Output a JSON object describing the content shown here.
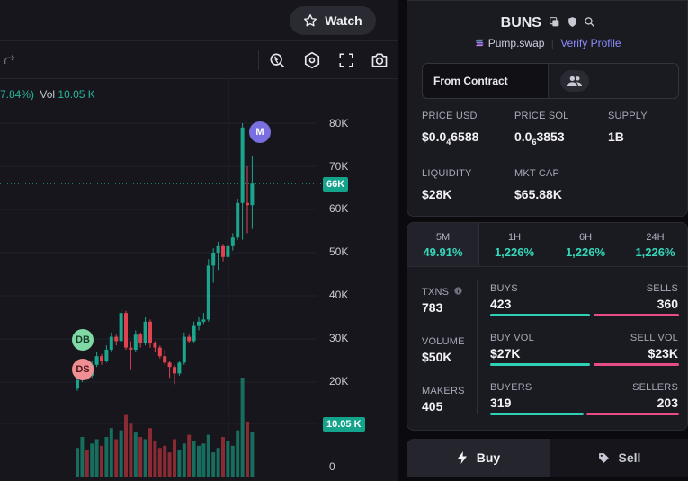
{
  "header": {
    "watch_label": "Watch"
  },
  "chart": {
    "change_text": "7.84%)",
    "vol_label": "Vol",
    "vol_value": "10.05 K",
    "price_tag": "66K",
    "volume_tag": "10.05 K",
    "y_ticks": [
      "80K",
      "70K",
      "60K",
      "50K",
      "40K",
      "30K",
      "20K",
      "0"
    ],
    "markers": {
      "m": "M",
      "db": "DB",
      "ds": "DS"
    },
    "colors": {
      "up": "#1ba58d",
      "down": "#e0434f",
      "m_marker": "#7a6fe0",
      "db_marker": "#7fd9a4",
      "ds_marker": "#f08f93"
    }
  },
  "chart_data": {
    "type": "candlestick",
    "y_axis_ticks": [
      "80K",
      "70K",
      "60K",
      "50K",
      "40K",
      "30K",
      "20K",
      "0"
    ],
    "last_price": "66K",
    "last_volume": "10.05 K",
    "candles": [
      {
        "o": 18500,
        "c": 20500,
        "h": 21500,
        "l": 18000
      },
      {
        "o": 20500,
        "c": 22500,
        "h": 23500,
        "l": 20000
      },
      {
        "o": 22500,
        "c": 21500,
        "h": 23000,
        "l": 20500
      },
      {
        "o": 21500,
        "c": 24000,
        "h": 25000,
        "l": 21000
      },
      {
        "o": 24000,
        "c": 26000,
        "h": 27000,
        "l": 23500
      },
      {
        "o": 26000,
        "c": 25000,
        "h": 26500,
        "l": 24000
      },
      {
        "o": 25000,
        "c": 27500,
        "h": 28500,
        "l": 24500
      },
      {
        "o": 27500,
        "c": 30500,
        "h": 31500,
        "l": 27000
      },
      {
        "o": 30500,
        "c": 29500,
        "h": 31000,
        "l": 28500
      },
      {
        "o": 29500,
        "c": 36000,
        "h": 37000,
        "l": 29000
      },
      {
        "o": 36000,
        "c": 28000,
        "h": 36500,
        "l": 27500
      },
      {
        "o": 28000,
        "c": 27500,
        "h": 29500,
        "l": 23000
      },
      {
        "o": 27500,
        "c": 31000,
        "h": 32000,
        "l": 27000
      },
      {
        "o": 31000,
        "c": 29000,
        "h": 31500,
        "l": 28000
      },
      {
        "o": 29000,
        "c": 34000,
        "h": 35000,
        "l": 28500
      },
      {
        "o": 34000,
        "c": 29000,
        "h": 34500,
        "l": 28000
      },
      {
        "o": 29000,
        "c": 28000,
        "h": 29500,
        "l": 27000
      },
      {
        "o": 28000,
        "c": 26000,
        "h": 28500,
        "l": 25500
      },
      {
        "o": 26000,
        "c": 24500,
        "h": 27500,
        "l": 24000
      },
      {
        "o": 24500,
        "c": 23500,
        "h": 25000,
        "l": 21000
      },
      {
        "o": 23500,
        "c": 22000,
        "h": 24000,
        "l": 19500
      },
      {
        "o": 22000,
        "c": 24500,
        "h": 25000,
        "l": 21500
      },
      {
        "o": 24500,
        "c": 30500,
        "h": 31500,
        "l": 24000
      },
      {
        "o": 30500,
        "c": 29500,
        "h": 31000,
        "l": 29000
      },
      {
        "o": 29500,
        "c": 33000,
        "h": 34000,
        "l": 29000
      },
      {
        "o": 33000,
        "c": 34000,
        "h": 35000,
        "l": 32000
      },
      {
        "o": 34000,
        "c": 34500,
        "h": 36000,
        "l": 33500
      },
      {
        "o": 34500,
        "c": 47000,
        "h": 48500,
        "l": 34000
      },
      {
        "o": 47000,
        "c": 50000,
        "h": 51000,
        "l": 43000
      },
      {
        "o": 50000,
        "c": 51500,
        "h": 52500,
        "l": 46000
      },
      {
        "o": 51500,
        "c": 49000,
        "h": 52000,
        "l": 48000
      },
      {
        "o": 49000,
        "c": 51500,
        "h": 53000,
        "l": 48500
      },
      {
        "o": 51500,
        "c": 53500,
        "h": 54500,
        "l": 50500
      },
      {
        "o": 53500,
        "c": 61500,
        "h": 62500,
        "l": 53000
      },
      {
        "o": 61500,
        "c": 79000,
        "h": 80000,
        "l": 53000
      },
      {
        "o": 61500,
        "c": 61000,
        "h": 70000,
        "l": 54500
      },
      {
        "o": 61000,
        "c": 66000,
        "h": 72500,
        "l": 55500
      }
    ],
    "volumes": [
      6500,
      9000,
      6000,
      7500,
      8500,
      7000,
      9000,
      11000,
      8500,
      10500,
      14000,
      12000,
      10000,
      9000,
      8500,
      11000,
      8000,
      6500,
      7000,
      5500,
      8500,
      6000,
      7500,
      9500,
      8000,
      7000,
      7500,
      9500,
      5500,
      6500,
      9000,
      8000,
      7000,
      10500,
      22500,
      12500,
      10050
    ]
  },
  "token": {
    "name": "BUNS",
    "platform": "Pump.swap",
    "verify_label": "Verify Profile",
    "from_contract_label": "From Contract",
    "stats": [
      {
        "label": "PRICE USD",
        "value_pre": "$0.0",
        "value_sub": "4",
        "value_post": "6588"
      },
      {
        "label": "PRICE SOL",
        "value_pre": "0.0",
        "value_sub": "6",
        "value_post": "3853"
      },
      {
        "label": "SUPPLY",
        "value": "1B"
      },
      {
        "label": "LIQUIDITY",
        "value": "$28K"
      },
      {
        "label": "MKT CAP",
        "value": "$65.88K"
      }
    ]
  },
  "timeframes": [
    {
      "label": "5M",
      "value": "49.91%"
    },
    {
      "label": "1H",
      "value": "1,226%"
    },
    {
      "label": "6H",
      "value": "1,226%"
    },
    {
      "label": "24H",
      "value": "1,226%"
    }
  ],
  "activity": {
    "txns_label": "TXNS",
    "txns_value": "783",
    "volume_label": "VOLUME",
    "volume_value": "$50K",
    "makers_label": "MAKERS",
    "makers_value": "405",
    "buys_label": "BUYS",
    "buys_value": "423",
    "sells_label": "SELLS",
    "sells_value": "360",
    "buy_vol_label": "BUY VOL",
    "buy_vol_value": "$27K",
    "sell_vol_label": "SELL VOL",
    "sell_vol_value": "$23K",
    "buyers_label": "BUYERS",
    "buyers_value": "319",
    "sellers_label": "SELLERS",
    "sellers_value": "203",
    "buy_color": "#2fd1b6",
    "sell_color": "#e94d89"
  },
  "actions": {
    "buy_label": "Buy",
    "sell_label": "Sell"
  }
}
